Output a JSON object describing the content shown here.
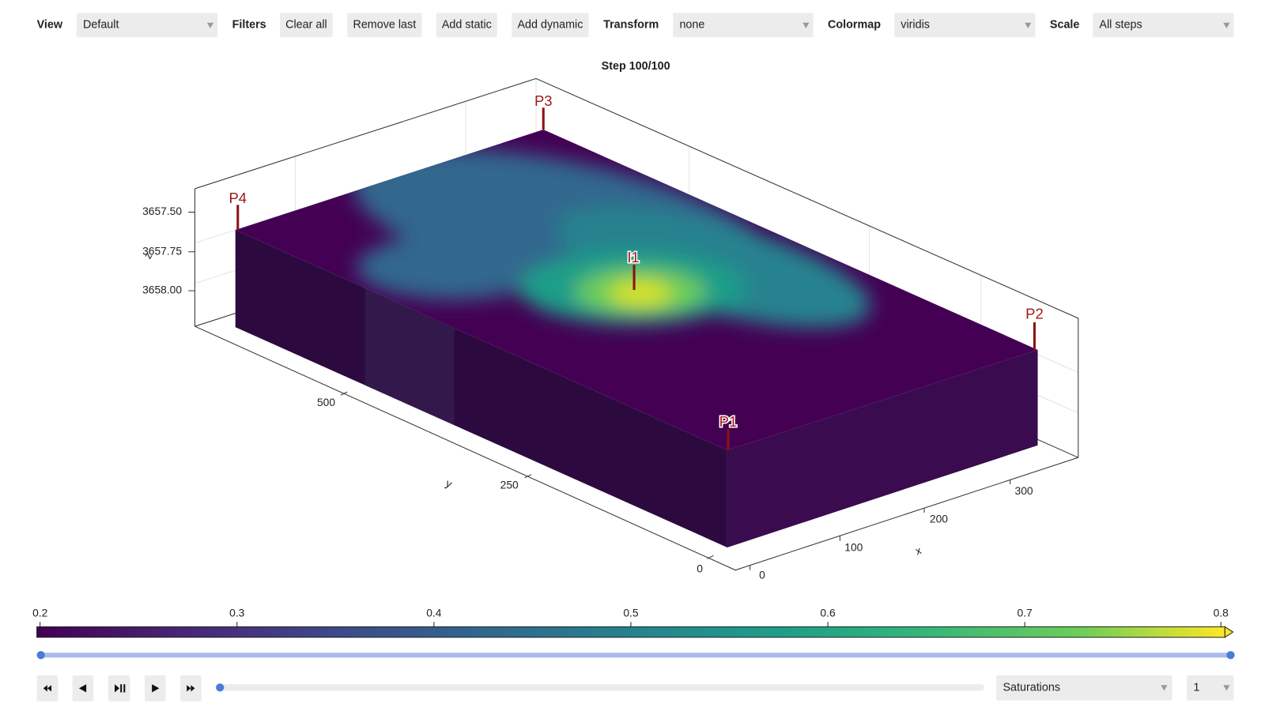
{
  "toolbar": {
    "view": {
      "label": "View",
      "value": "Default"
    },
    "filters": {
      "label": "Filters",
      "buttons": [
        "Clear all",
        "Remove last",
        "Add static",
        "Add dynamic"
      ]
    },
    "transform": {
      "label": "Transform",
      "value": "none"
    },
    "colormap": {
      "label": "Colormap",
      "value": "viridis"
    },
    "scale": {
      "label": "Scale",
      "value": "All steps"
    }
  },
  "plot": {
    "title": "Step 100/100",
    "z_axis": {
      "label": "z",
      "ticks": [
        "3657.50",
        "3657.75",
        "3658.00"
      ]
    },
    "y_axis": {
      "label": "y",
      "ticks": [
        "500",
        "250",
        "0"
      ]
    },
    "x_axis": {
      "label": "x",
      "ticks": [
        "0",
        "100",
        "200",
        "300"
      ]
    },
    "wells": [
      "P3",
      "P4",
      "I1",
      "P2",
      "P1"
    ]
  },
  "colorbar": {
    "ticks": [
      "0.2",
      "0.3",
      "0.4",
      "0.5",
      "0.6",
      "0.7",
      "0.8"
    ]
  },
  "playback": {
    "field": "Saturations",
    "index": "1"
  }
}
